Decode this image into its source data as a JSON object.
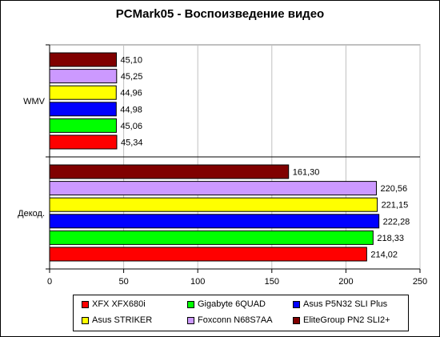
{
  "chart_data": {
    "type": "bar",
    "orientation": "horizontal",
    "title": "PCMark05 - Воспоизведение видео",
    "categories": [
      "WMV",
      "Декод."
    ],
    "series": [
      {
        "name": "XFX XFX680i",
        "color": "#ff0000",
        "values": [
          45.34,
          214.02
        ],
        "labels": [
          "45,34",
          "214,02"
        ]
      },
      {
        "name": "Gigabyte 6QUAD",
        "color": "#00ff00",
        "values": [
          45.06,
          218.33
        ],
        "labels": [
          "45,06",
          "218,33"
        ]
      },
      {
        "name": "Asus P5N32 SLI Plus",
        "color": "#0000ff",
        "values": [
          44.98,
          222.28
        ],
        "labels": [
          "44,98",
          "222,28"
        ]
      },
      {
        "name": "Asus STRIKER",
        "color": "#ffff00",
        "values": [
          44.96,
          221.15
        ],
        "labels": [
          "44,96",
          "221,15"
        ]
      },
      {
        "name": "Foxconn N68S7AA",
        "color": "#cc99ff",
        "values": [
          45.25,
          220.56
        ],
        "labels": [
          "45,25",
          "220,56"
        ]
      },
      {
        "name": "EliteGroup PN2 SLI2+",
        "color": "#800000",
        "values": [
          45.1,
          161.3
        ],
        "labels": [
          "45,10",
          "161,30"
        ]
      }
    ],
    "xlim": [
      0,
      250
    ],
    "xticks": [
      0,
      50,
      100,
      150,
      200,
      250
    ],
    "grid": true,
    "legend_position": "bottom",
    "background_color": "#ffffff"
  }
}
